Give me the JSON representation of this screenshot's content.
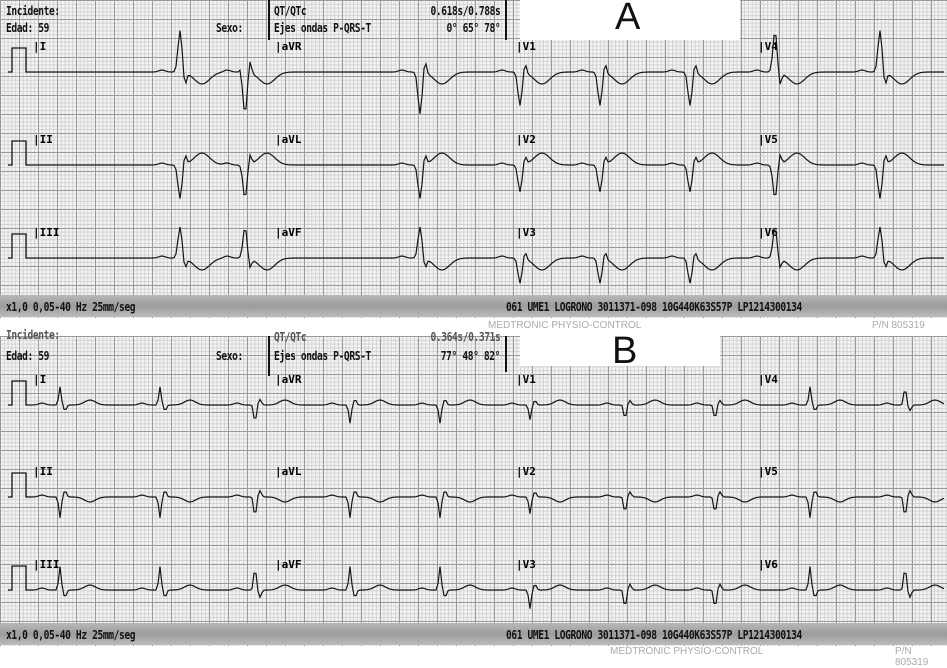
{
  "panels": [
    {
      "label": "A",
      "incidente": "Incidente:",
      "edad": "Edad: 59",
      "sexo": "Sexo:",
      "qt_label": "QT/QTc",
      "qt_value": "0.618s/0.788s",
      "axes_label": "Ejes ondas P-QRS-T",
      "axes_value": "0° 65° 78°",
      "leads": [
        "I",
        "II",
        "III",
        "aVR",
        "aVL",
        "aVF",
        "V1",
        "V2",
        "V3",
        "V4",
        "V5",
        "V6"
      ],
      "footer_left": "x1,0 0,05-40 Hz 25mm/seg",
      "footer_id": "061 UME1 LOGRONO  3011371-098 10G440K63S57P LP1214300134",
      "brand": "MEDTRONIC PHYSIO-CONTROL",
      "part": "P/N 805319"
    },
    {
      "label": "B",
      "incidente": "Incidente:",
      "edad": "Edad: 59",
      "sexo": "Sexo:",
      "qt_label": "QT/QTc",
      "qt_value": "0.364s/0.371s",
      "axes_label": "Ejes ondas P-QRS-T",
      "axes_value": "77° 48° 82°",
      "leads": [
        "I",
        "II",
        "III",
        "aVR",
        "aVL",
        "aVF",
        "V1",
        "V2",
        "V3",
        "V4",
        "V5",
        "V6"
      ],
      "footer_left": "x1,0 0,05-40 Hz 25mm/seg",
      "footer_id": "061 UME1 LOGRONO  3011371-098 10G440K63S57P LP1214300134",
      "brand": "MEDTRONIC PHYSIO-CONTROL",
      "part": "P/N 805319"
    }
  ]
}
